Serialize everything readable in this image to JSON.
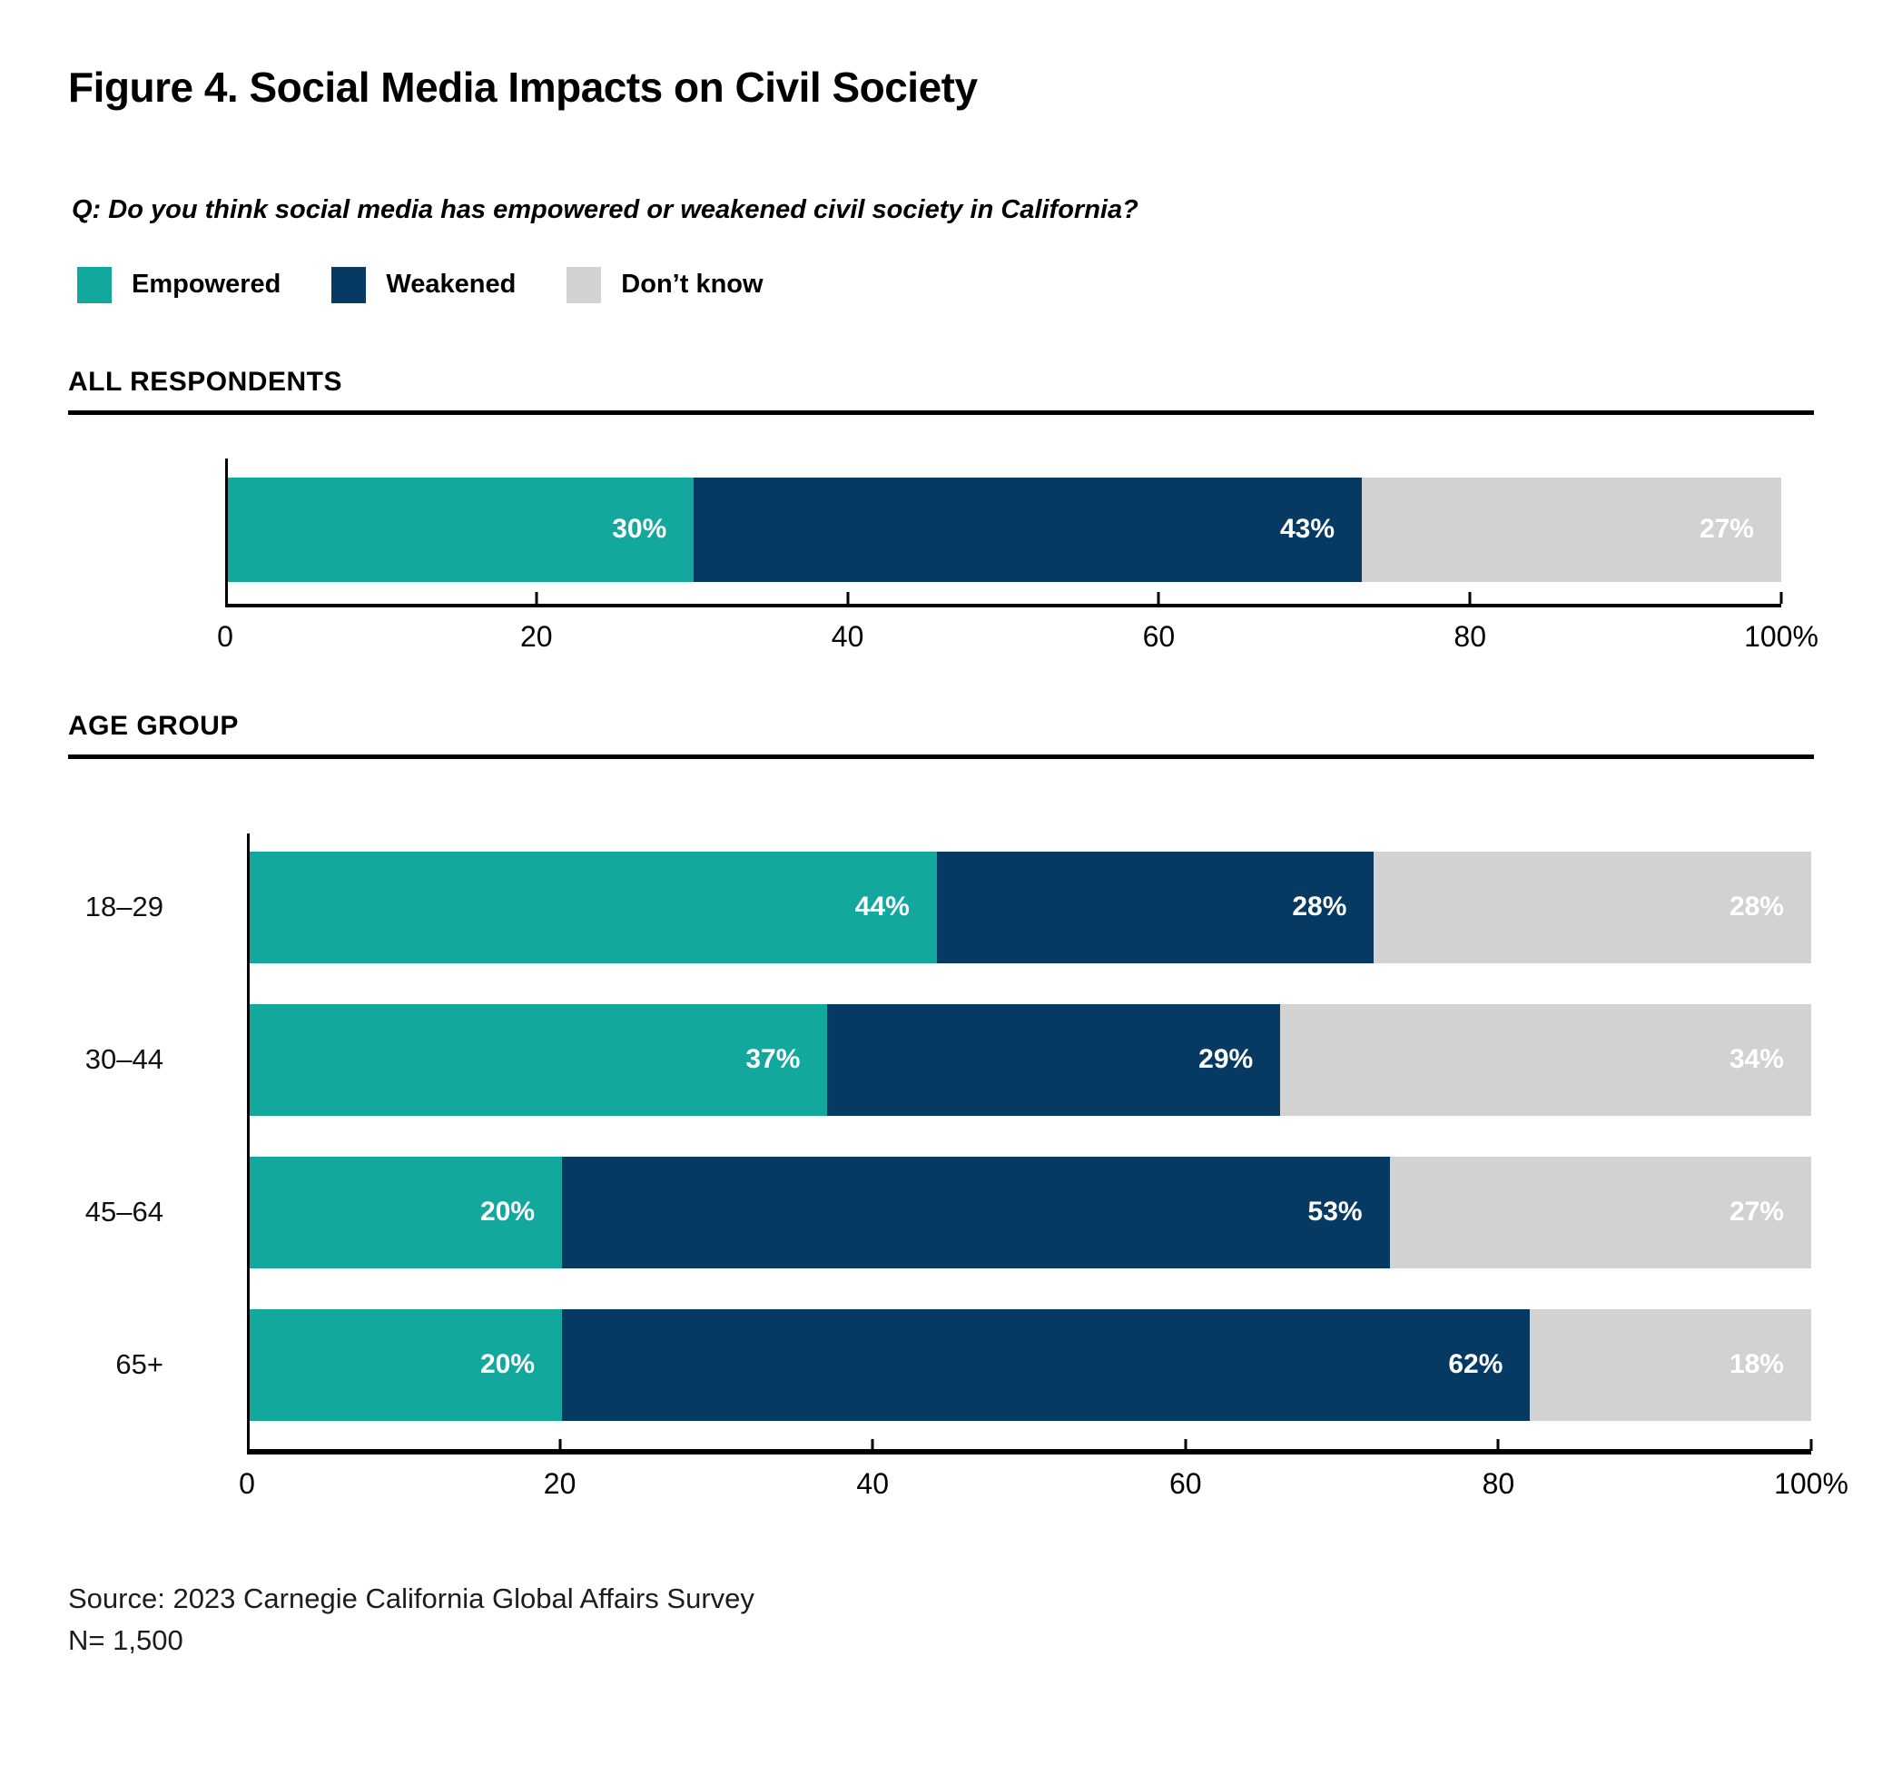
{
  "figure": {
    "title": "Figure 4. Social Media Impacts on Civil Society",
    "question": "Q: Do you think social media has empowered or weakened civil society in California?",
    "source": "Source: 2023 Carnegie California Global Affairs Survey",
    "sample_size": "N= 1,500"
  },
  "legend": {
    "items": [
      {
        "label": "Empowered",
        "color": "#13A89D"
      },
      {
        "label": "Weakened",
        "color": "#063A63"
      },
      {
        "label": "Don’t know",
        "color": "#D2D2D2"
      }
    ]
  },
  "sections": [
    {
      "header": "ALL RESPONDENTS"
    },
    {
      "header": "AGE GROUP"
    }
  ],
  "chart_data": [
    {
      "type": "bar",
      "orientation": "horizontal",
      "stacked": true,
      "title": "ALL RESPONDENTS",
      "categories": [
        ""
      ],
      "series": [
        {
          "name": "Empowered",
          "color": "#13A89D",
          "values": [
            30
          ]
        },
        {
          "name": "Weakened",
          "color": "#063A63",
          "values": [
            43
          ]
        },
        {
          "name": "Don't know",
          "color": "#D2D2D2",
          "values": [
            27
          ]
        }
      ],
      "value_labels": [
        "30%",
        "43%",
        "27%"
      ],
      "x_ticks": [
        "0",
        "20",
        "40",
        "60",
        "80",
        "100%"
      ],
      "xlim": [
        0,
        100
      ],
      "xlabel": "",
      "ylabel": "",
      "grid": false,
      "legend_position": "top"
    },
    {
      "type": "bar",
      "orientation": "horizontal",
      "stacked": true,
      "title": "AGE GROUP",
      "categories": [
        "18–29",
        "30–44",
        "45–64",
        "65+"
      ],
      "series": [
        {
          "name": "Empowered",
          "color": "#13A89D",
          "values": [
            44,
            37,
            20,
            20
          ]
        },
        {
          "name": "Weakened",
          "color": "#063A63",
          "values": [
            28,
            29,
            53,
            62
          ]
        },
        {
          "name": "Don't know",
          "color": "#D2D2D2",
          "values": [
            28,
            34,
            27,
            18
          ]
        }
      ],
      "x_ticks": [
        "0",
        "20",
        "40",
        "60",
        "80",
        "100%"
      ],
      "xlim": [
        0,
        100
      ],
      "xlabel": "",
      "ylabel": "",
      "grid": false,
      "legend_position": "top"
    }
  ]
}
